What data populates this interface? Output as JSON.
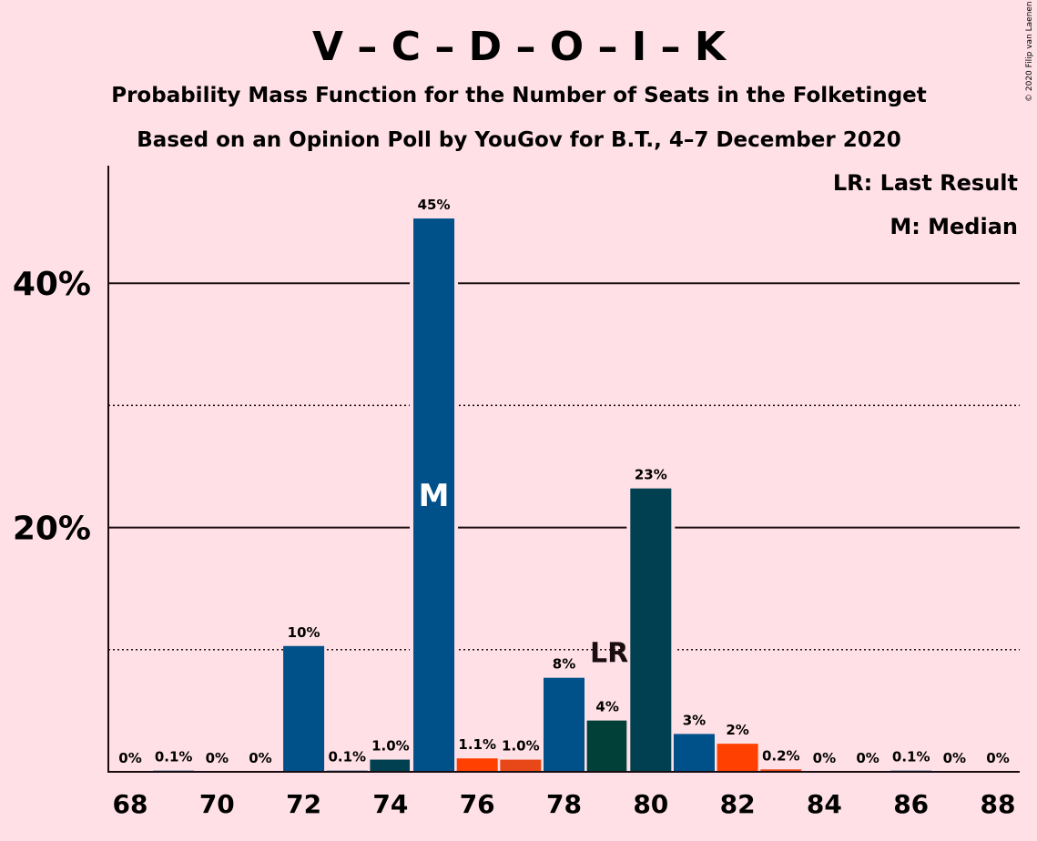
{
  "chart_data": {
    "type": "bar",
    "title": "V – C – D – O – I – K",
    "subtitles": [
      "Probability Mass Function for the Number of Seats in the Folketinget",
      "Based on an Opinion Poll by YouGov for B.T., 4–7 December 2020"
    ],
    "copyright": "© 2020 Filip van Laenen",
    "legend": [
      "LR: Last Result",
      "M: Median"
    ],
    "legend_position": "top-right",
    "xlabel": "",
    "ylabel": "",
    "ylim": [
      0,
      49
    ],
    "y_ticks": [
      {
        "value": 20,
        "label": "20%"
      },
      {
        "value": 40,
        "label": "40%"
      }
    ],
    "gridlines_solid": [
      20,
      40
    ],
    "gridlines_dotted": [
      10,
      30
    ],
    "x_ticks": [
      "68",
      "70",
      "72",
      "74",
      "76",
      "78",
      "80",
      "82",
      "84",
      "86",
      "88"
    ],
    "median_seat": 75,
    "last_result_seat": 79,
    "markers": {
      "median": "M",
      "last_result": "LR"
    },
    "bars": [
      {
        "seat": 68,
        "value": 0,
        "label": "0%",
        "color": "#1a5a8a"
      },
      {
        "seat": 69,
        "value": 0.1,
        "label": "0.1%",
        "color": "#1a5a8a"
      },
      {
        "seat": 70,
        "value": 0,
        "label": "0%",
        "color": "#1a5a8a"
      },
      {
        "seat": 71,
        "value": 0,
        "label": "0%",
        "color": "#1a5a8a"
      },
      {
        "seat": 72,
        "value": 10.3,
        "label": "10%",
        "color": "#00508a"
      },
      {
        "seat": 73,
        "value": 0.1,
        "label": "0.1%",
        "color": "#00508a"
      },
      {
        "seat": 74,
        "value": 1.0,
        "label": "1.0%",
        "color": "#004050"
      },
      {
        "seat": 75,
        "value": 45.3,
        "label": "45%",
        "color": "#00508a"
      },
      {
        "seat": 76,
        "value": 1.1,
        "label": "1.1%",
        "color": "#ff4000"
      },
      {
        "seat": 77,
        "value": 1.0,
        "label": "1.0%",
        "color": "#e84818"
      },
      {
        "seat": 78,
        "value": 7.7,
        "label": "8%",
        "color": "#00508a"
      },
      {
        "seat": 79,
        "value": 4.2,
        "label": "4%",
        "color": "#004038"
      },
      {
        "seat": 80,
        "value": 23.2,
        "label": "23%",
        "color": "#004050"
      },
      {
        "seat": 81,
        "value": 3.1,
        "label": "3%",
        "color": "#00508a"
      },
      {
        "seat": 82,
        "value": 2.3,
        "label": "2%",
        "color": "#ff4000"
      },
      {
        "seat": 83,
        "value": 0.2,
        "label": "0.2%",
        "color": "#e84818"
      },
      {
        "seat": 84,
        "value": 0,
        "label": "0%",
        "color": "#1a5a8a"
      },
      {
        "seat": 85,
        "value": 0,
        "label": "0%",
        "color": "#1a5a8a"
      },
      {
        "seat": 86,
        "value": 0.1,
        "label": "0.1%",
        "color": "#1a5a8a"
      },
      {
        "seat": 87,
        "value": 0,
        "label": "0%",
        "color": "#1a5a8a"
      },
      {
        "seat": 88,
        "value": 0,
        "label": "0%",
        "color": "#1a5a8a"
      }
    ]
  }
}
